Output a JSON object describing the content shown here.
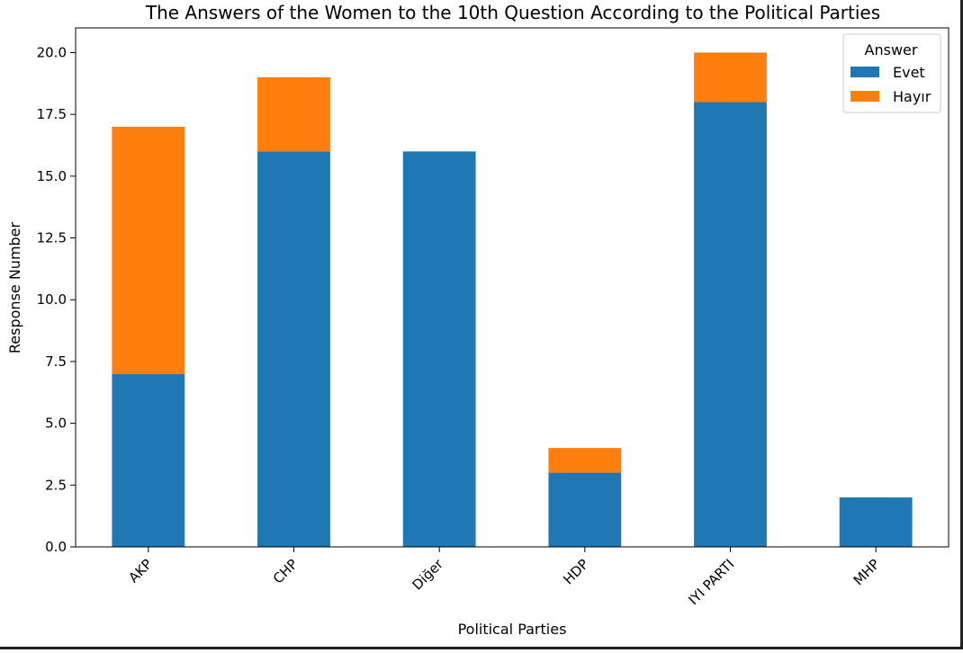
{
  "chart_data": {
    "type": "bar",
    "stacked": true,
    "title": "The Answers of the Women to the 10th Question According to the Political Parties",
    "xlabel": "Political Parties",
    "ylabel": "Response Number",
    "categories": [
      "AKP",
      "CHP",
      "Diğer",
      "HDP",
      "IYI PARTI",
      "MHP"
    ],
    "series": [
      {
        "name": "Evet",
        "color": "#1f77b4",
        "values": [
          7,
          16,
          16,
          3,
          18,
          2
        ]
      },
      {
        "name": "Hayır",
        "color": "#ff7f0e",
        "values": [
          10,
          3,
          0,
          1,
          2,
          0
        ]
      }
    ],
    "ylim": [
      0,
      21
    ],
    "yticks": [
      "0.0",
      "2.5",
      "5.0",
      "7.5",
      "10.0",
      "12.5",
      "15.0",
      "17.5",
      "20.0"
    ],
    "grid": false,
    "legend": {
      "title": "Answer",
      "placement": "top-right"
    }
  }
}
